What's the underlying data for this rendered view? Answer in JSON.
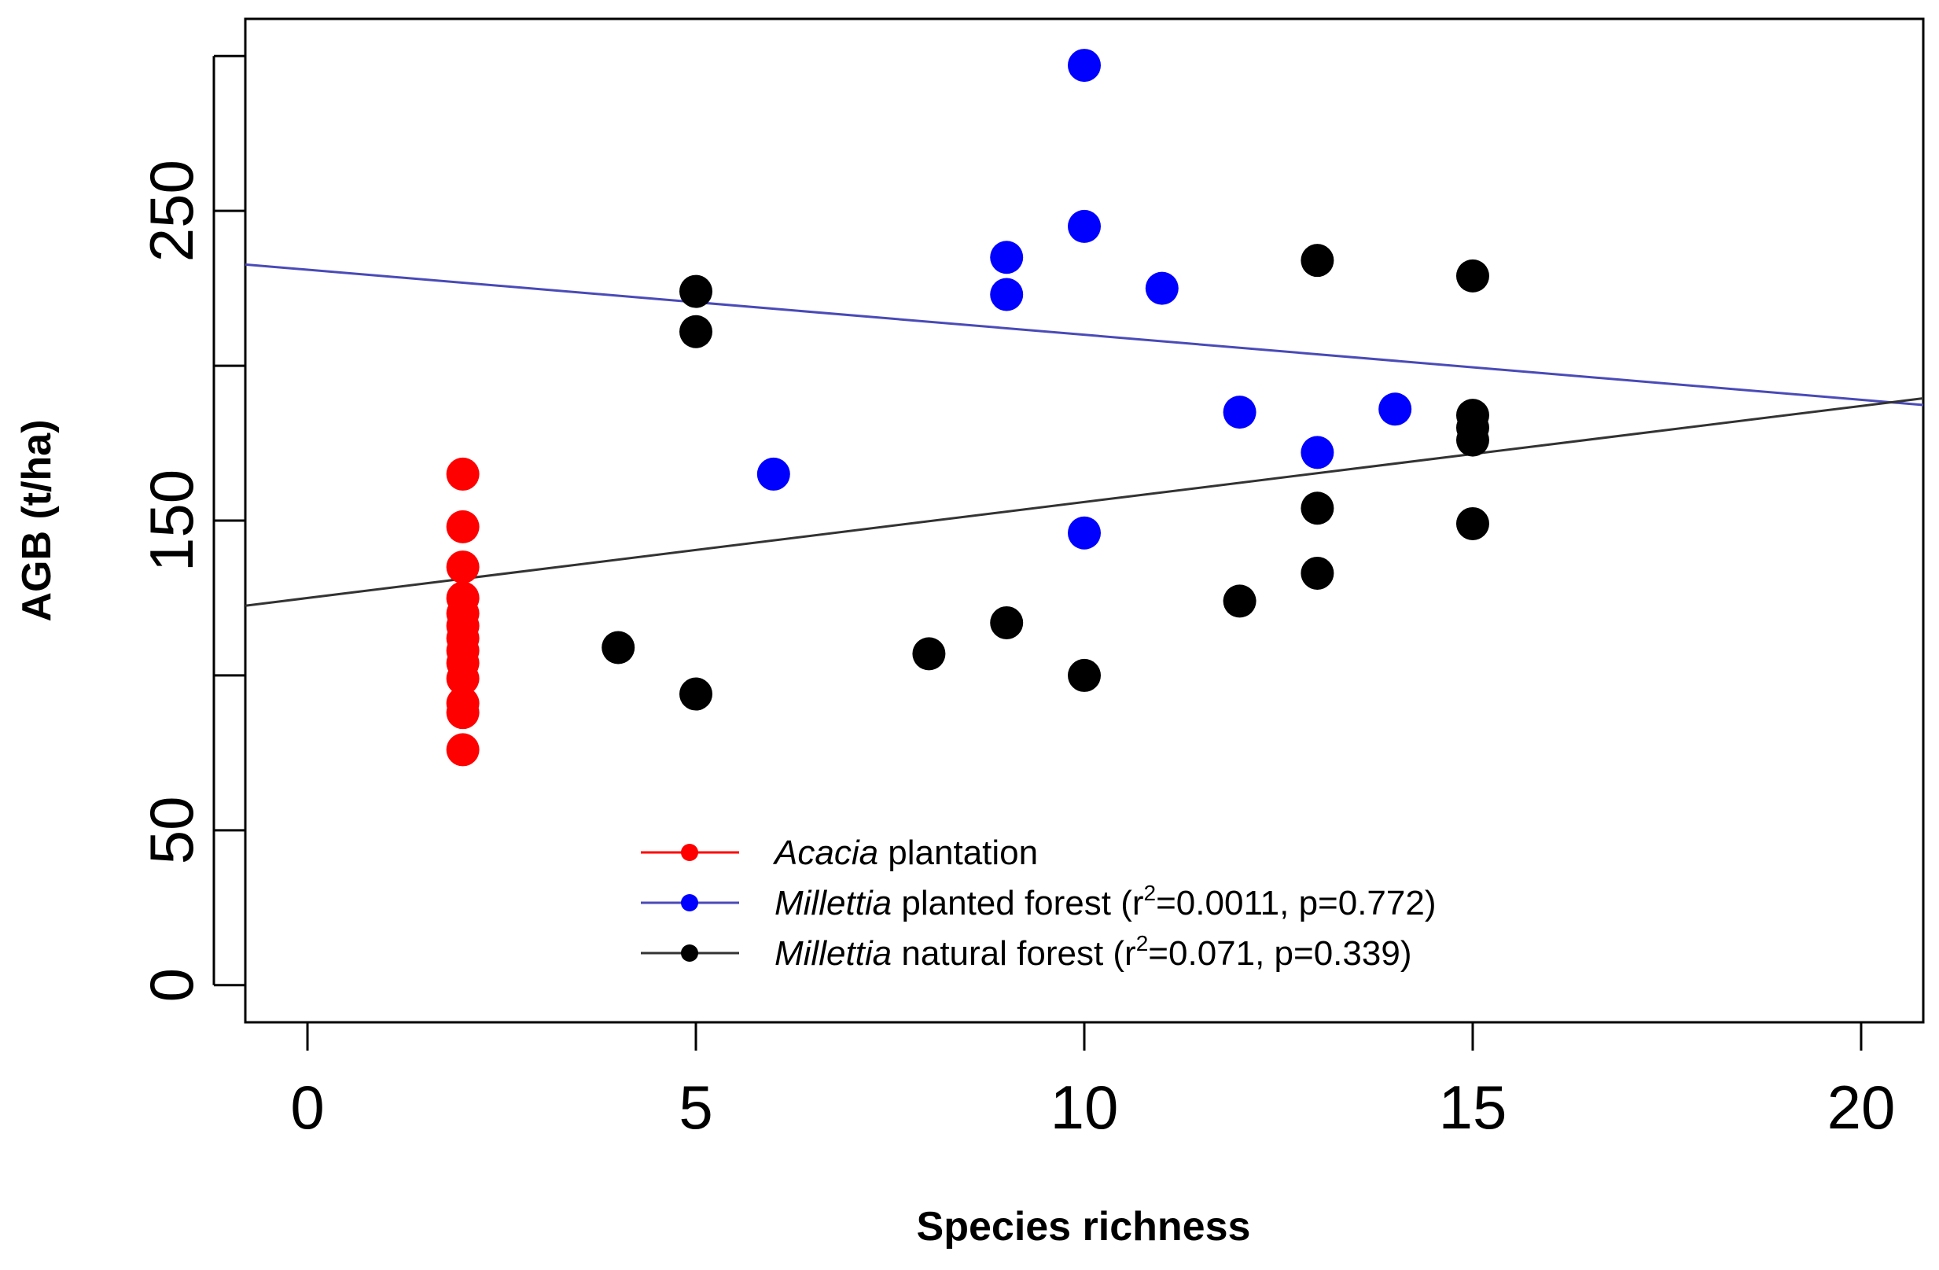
{
  "chart_data": {
    "type": "scatter",
    "xlabel": "Species richness",
    "ylabel": "AGB (t/ha)",
    "xlim": [
      -0.8,
      20.8
    ],
    "ylim": [
      -12,
      312
    ],
    "xticks": [
      "0",
      "5",
      "10",
      "15",
      "20"
    ],
    "yticks": [
      "0",
      "50",
      "150",
      "250"
    ],
    "series": [
      {
        "name": "Acacia plantation",
        "legend_italic": "Acacia",
        "legend_rest": " plantation",
        "color": "#ff0000",
        "points": [
          {
            "x": 2,
            "y": 165
          },
          {
            "x": 2,
            "y": 148
          },
          {
            "x": 2,
            "y": 135
          },
          {
            "x": 2,
            "y": 125
          },
          {
            "x": 2,
            "y": 120
          },
          {
            "x": 2,
            "y": 116
          },
          {
            "x": 2,
            "y": 112
          },
          {
            "x": 2,
            "y": 108
          },
          {
            "x": 2,
            "y": 104
          },
          {
            "x": 2,
            "y": 99
          },
          {
            "x": 2,
            "y": 91
          },
          {
            "x": 2,
            "y": 88
          },
          {
            "x": 2,
            "y": 76
          }
        ]
      },
      {
        "name": "Millettia planted forest",
        "legend_italic": "Millettia",
        "legend_rest": " planted forest (r",
        "legend_sup": "2",
        "legend_tail": "=0.0011, p=0.772)",
        "color": "#0000ff",
        "line_color": "#4a4ab8",
        "fit": {
          "intercept": 231,
          "slope": -2.1
        },
        "points": [
          {
            "x": 6,
            "y": 165
          },
          {
            "x": 9,
            "y": 235
          },
          {
            "x": 9,
            "y": 223
          },
          {
            "x": 10,
            "y": 297
          },
          {
            "x": 10,
            "y": 245
          },
          {
            "x": 10,
            "y": 146
          },
          {
            "x": 11,
            "y": 225
          },
          {
            "x": 12,
            "y": 185
          },
          {
            "x": 13,
            "y": 172
          },
          {
            "x": 14,
            "y": 186
          }
        ]
      },
      {
        "name": "Millettia natural forest",
        "legend_italic": "Millettia",
        "legend_rest": " natural forest (r",
        "legend_sup": "2",
        "legend_tail": "=0.071, p=0.339)",
        "color": "#000000",
        "line_color": "#333333",
        "fit": {
          "intercept": 125,
          "slope": 3.1
        },
        "points": [
          {
            "x": 4,
            "y": 109
          },
          {
            "x": 5,
            "y": 224
          },
          {
            "x": 5,
            "y": 211
          },
          {
            "x": 5,
            "y": 94
          },
          {
            "x": 8,
            "y": 107
          },
          {
            "x": 9,
            "y": 117
          },
          {
            "x": 10,
            "y": 100
          },
          {
            "x": 12,
            "y": 124
          },
          {
            "x": 13,
            "y": 234
          },
          {
            "x": 13,
            "y": 154
          },
          {
            "x": 13,
            "y": 133
          },
          {
            "x": 15,
            "y": 229
          },
          {
            "x": 15,
            "y": 184
          },
          {
            "x": 15,
            "y": 180
          },
          {
            "x": 15,
            "y": 176
          },
          {
            "x": 15,
            "y": 149
          }
        ]
      }
    ],
    "legend_position": "bottom-center"
  }
}
